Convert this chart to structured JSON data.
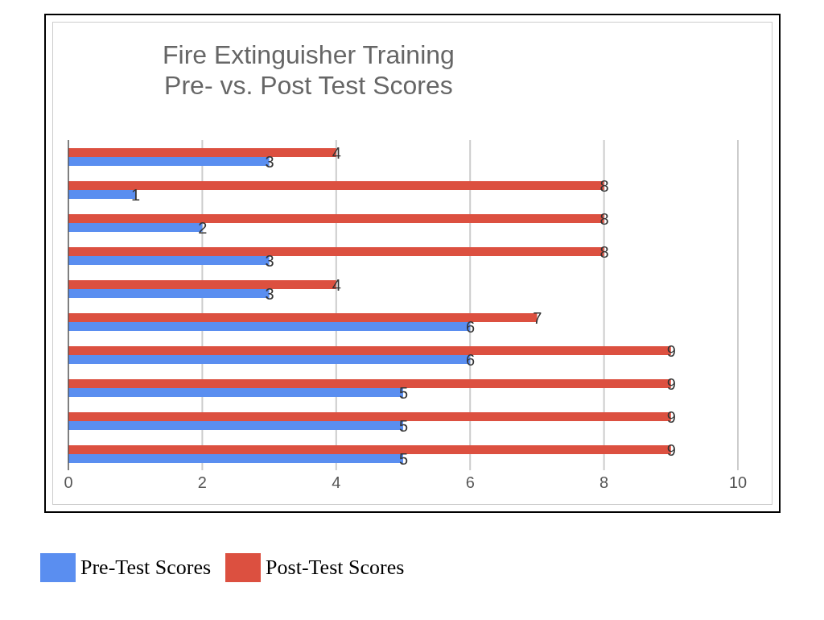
{
  "chart_data": {
    "type": "bar",
    "orientation": "horizontal",
    "title": "Fire Extinguisher Training\nPre- vs. Post Test Scores",
    "categories": [
      null,
      null,
      null,
      null,
      null,
      null,
      null,
      null,
      null,
      null
    ],
    "series": [
      {
        "name": "Pre-Test Scores",
        "color": "#5a8ef0",
        "values": [
          3,
          1,
          2,
          3,
          3,
          6,
          6,
          5,
          5,
          5
        ]
      },
      {
        "name": "Post-Test Scores",
        "color": "#dc5040",
        "values": [
          4,
          8,
          8,
          8,
          4,
          7,
          9,
          9,
          9,
          9
        ]
      }
    ],
    "xlim": [
      0,
      10
    ],
    "xticks": [
      0,
      2,
      4,
      6,
      8,
      10
    ],
    "grid": "x",
    "legend": "bottom left",
    "data_labels": true,
    "tick_labels": "x"
  }
}
